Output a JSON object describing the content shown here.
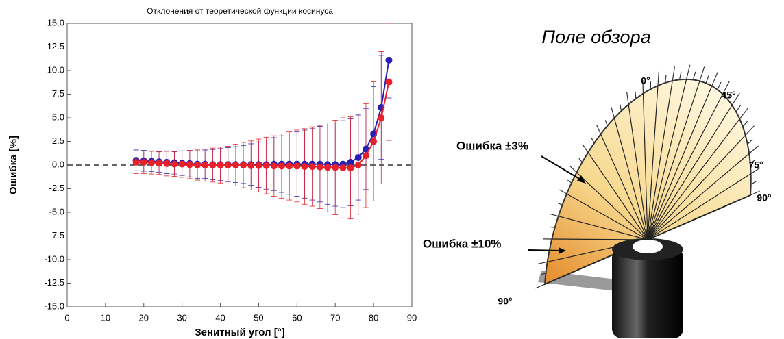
{
  "chart_data": {
    "type": "line",
    "title": "Отклонения от теоретической функции косинуса",
    "xlabel": "Зенитный угол [°]",
    "ylabel": "Ошибка [%]",
    "x": [
      18,
      20,
      22,
      24,
      26,
      28,
      30,
      32,
      34,
      36,
      38,
      40,
      42,
      44,
      46,
      48,
      50,
      52,
      54,
      56,
      58,
      60,
      62,
      64,
      66,
      68,
      70,
      72,
      74,
      76,
      78,
      80,
      82,
      84
    ],
    "series": [
      {
        "color": "#2a1fb0",
        "values": [
          0.5,
          0.45,
          0.4,
          0.35,
          0.3,
          0.25,
          0.2,
          0.15,
          0.1,
          0.1,
          0.05,
          0.05,
          0.05,
          0.05,
          0.05,
          0.05,
          0.05,
          0.05,
          0.1,
          0.1,
          0.1,
          0.1,
          0.1,
          0.1,
          0.1,
          0.05,
          0.05,
          0.1,
          0.3,
          0.8,
          1.7,
          3.3,
          6.1,
          11.1
        ],
        "errors": [
          1.1,
          1.1,
          1.1,
          1.1,
          1.2,
          1.2,
          1.3,
          1.4,
          1.5,
          1.5,
          1.6,
          1.7,
          1.8,
          1.9,
          2.0,
          2.2,
          2.4,
          2.6,
          2.8,
          3.0,
          3.2,
          3.4,
          3.6,
          3.8,
          4.0,
          4.2,
          4.4,
          4.6,
          4.6,
          4.5,
          4.3,
          5.0,
          5.5,
          4.0
        ]
      },
      {
        "color": "#e8202a",
        "values": [
          0.3,
          0.3,
          0.25,
          0.2,
          0.15,
          0.1,
          0.1,
          0.05,
          0,
          0,
          0,
          0,
          0,
          0,
          0,
          -0.05,
          -0.05,
          -0.05,
          -0.1,
          -0.1,
          -0.1,
          -0.1,
          -0.15,
          -0.15,
          -0.2,
          -0.25,
          -0.25,
          -0.3,
          -0.3,
          0.0,
          1.0,
          2.5,
          5.0,
          8.8
        ],
        "errors": [
          1.2,
          1.2,
          1.2,
          1.2,
          1.3,
          1.3,
          1.4,
          1.5,
          1.6,
          1.7,
          1.8,
          1.9,
          2.0,
          2.2,
          2.4,
          2.6,
          2.8,
          3.0,
          3.2,
          3.4,
          3.6,
          3.8,
          4.0,
          4.2,
          4.4,
          4.7,
          5.0,
          5.3,
          5.4,
          5.2,
          5.5,
          6.3,
          7.0,
          6.2
        ]
      }
    ],
    "xlim": [
      0,
      90
    ],
    "xticks": [
      0,
      10,
      20,
      30,
      40,
      50,
      60,
      70,
      80,
      90
    ],
    "ylim": [
      -15,
      15
    ],
    "yticks": [
      {
        "value": -15,
        "label": "-15.0"
      },
      -12.5,
      {
        "value": -10,
        "label": "-10.0"
      },
      -7.5,
      {
        "value": -5,
        "label": "-5.0"
      },
      -2.5,
      {
        "value": 0,
        "label": "0.0"
      },
      2.5,
      {
        "value": 5,
        "label": "5.0"
      },
      7.5,
      {
        "value": 10,
        "label": "10.0"
      },
      12.5,
      {
        "value": 15,
        "label": "15.0"
      }
    ],
    "grid": false
  },
  "illustration": {
    "title": "Поле обзора",
    "angle_top": "0°",
    "angle_45": "45°",
    "angle_75": "75°",
    "angle_90_right": "90°",
    "angle_90_left": "90°",
    "label_3": "Ошибка ±3%",
    "label_10": "Ошибка ±10%"
  }
}
